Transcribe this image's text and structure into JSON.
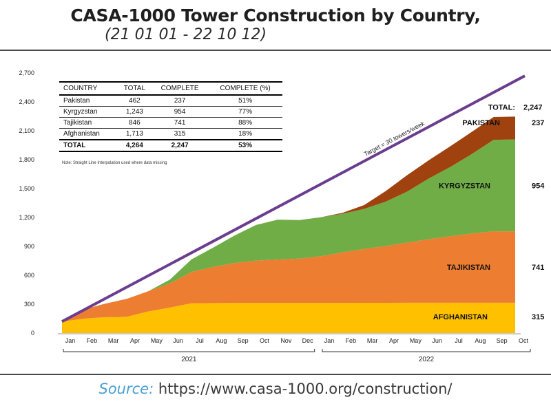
{
  "title": "CASA-1000 Tower Construction by Country,",
  "subtitle": "(21 01 01 - 22 10 12)",
  "source_label": "Source:",
  "source_url": "https://www.casa-1000.org/construction/",
  "note": "Note: Straight Line Interpolation used where data missing",
  "table": {
    "headers": [
      "COUNTRY",
      "TOTAL",
      "COMPLETE",
      "COMPLETE (%)"
    ],
    "rows": [
      [
        "Pakistan",
        "462",
        "237",
        "51%"
      ],
      [
        "Kyrgyzstan",
        "1,243",
        "954",
        "77%"
      ],
      [
        "Tajikistan",
        "846",
        "741",
        "88%"
      ],
      [
        "Afghanistan",
        "1,713",
        "315",
        "18%"
      ]
    ],
    "total_row": [
      "TOTAL",
      "4,264",
      "2,247",
      "53%"
    ]
  },
  "chart_data": {
    "type": "area",
    "stacked": true,
    "ylim": [
      0,
      2700
    ],
    "yticks": [
      0,
      300,
      600,
      900,
      1200,
      1500,
      1800,
      2100,
      2400,
      2700
    ],
    "ytick_labels": [
      "0",
      "300",
      "600",
      "900",
      "1,200",
      "1,500",
      "1,800",
      "2,100",
      "2,400",
      "2,700"
    ],
    "x_tick_labels": [
      "Jan",
      "Feb",
      "Mar",
      "Apr",
      "May",
      "Jun",
      "Jul",
      "Aug",
      "Sep",
      "Oct",
      "Nov",
      "Dec",
      "Jan",
      "Feb",
      "Mar",
      "Apr",
      "May",
      "Jun",
      "Jul",
      "Aug",
      "Sep",
      "Oct"
    ],
    "year_groups": [
      {
        "label": "2021",
        "from": 0,
        "to": 11
      },
      {
        "label": "2022",
        "from": 12,
        "to": 21
      }
    ],
    "x": [
      0,
      1,
      2,
      3,
      4,
      5,
      6,
      7,
      8,
      9,
      10,
      11,
      12,
      13,
      14,
      15,
      16,
      17,
      18,
      19,
      20,
      21
    ],
    "series": [
      {
        "name": "AFGHANISTAN",
        "color": "#FFC000",
        "end_label": "315",
        "values": [
          120,
          150,
          165,
          170,
          225,
          265,
          310,
          312,
          313,
          313,
          313,
          313,
          313,
          313,
          314,
          314,
          315,
          315,
          315,
          315,
          315,
          315
        ]
      },
      {
        "name": "TAJIKISTAN",
        "color": "#ED7D31",
        "end_label": "741",
        "values": [
          15,
          95,
          140,
          185,
          210,
          250,
          325,
          375,
          415,
          440,
          450,
          460,
          485,
          525,
          560,
          590,
          625,
          660,
          690,
          720,
          741,
          741
        ]
      },
      {
        "name": "KYRGYZSTAN",
        "color": "#70AD47",
        "end_label": "954",
        "values": [
          0,
          0,
          0,
          0,
          0,
          40,
          130,
          200,
          285,
          370,
          415,
          400,
          405,
          400,
          415,
          460,
          530,
          630,
          720,
          825,
          950,
          954
        ]
      },
      {
        "name": "PAKISTAN",
        "color": "#A0420F",
        "end_label": "237",
        "values": [
          0,
          0,
          0,
          0,
          0,
          0,
          0,
          0,
          0,
          0,
          0,
          0,
          0,
          10,
          40,
          110,
          170,
          190,
          215,
          230,
          237,
          237
        ]
      }
    ],
    "target_line": {
      "label": "Target = 30 towers/week",
      "color": "#6A3D8F",
      "start": [
        0,
        120
      ],
      "end": [
        21,
        2670
      ]
    },
    "total_label": "TOTAL:",
    "total_value": "2,247"
  }
}
